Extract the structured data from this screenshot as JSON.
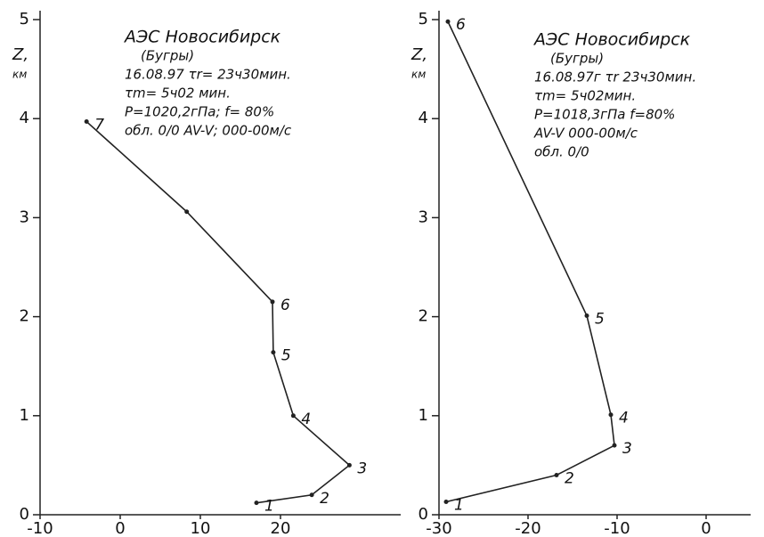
{
  "chart_data": [
    {
      "type": "line",
      "x": [
        17.0,
        23.9,
        28.6,
        21.6,
        19.1,
        19.0,
        8.3,
        -4.2
      ],
      "values": [
        0.12,
        0.2,
        0.5,
        1.0,
        1.64,
        2.15,
        3.06,
        3.97
      ],
      "point_labels": [
        "1",
        "2",
        "3",
        "4",
        "5",
        "6",
        null,
        "7"
      ],
      "color": "#222",
      "xlim": [
        -10,
        35
      ],
      "ylim": [
        0,
        5
      ],
      "xticks": [
        -10,
        0,
        10,
        20
      ],
      "yticks": [
        0,
        1,
        2,
        3,
        4,
        5
      ],
      "ylabel": [
        "Z,",
        "км"
      ],
      "annotations": [
        "АЭС Новосибирск",
        "(Бугры)",
        "16.08.97 τr= 23ч30мин.",
        "τm= 5ч02 мин.",
        "P=1020,2гПа; f= 80%",
        "обл. 0/0 AV-V; 000-00м/с"
      ]
    },
    {
      "type": "line",
      "x": [
        -29.2,
        -16.8,
        -10.3,
        -10.7,
        -13.4,
        -29.0
      ],
      "values": [
        0.13,
        0.4,
        0.7,
        1.01,
        2.01,
        4.98
      ],
      "point_labels": [
        "1",
        "2",
        "3",
        "4",
        "5",
        "6"
      ],
      "color": "#222",
      "xlim": [
        -30,
        5
      ],
      "ylim": [
        0,
        5
      ],
      "xticks": [
        -30,
        -20,
        -10,
        0
      ],
      "yticks": [
        0,
        1,
        2,
        3,
        4,
        5
      ],
      "ylabel": [
        "Z,",
        "км"
      ],
      "annotations": [
        "АЭС Новосибирск",
        "(Бугры)",
        "16.08.97г τr 23ч30мин.",
        "τm= 5ч02мин.",
        "P=1018,3гПа f=80%",
        "AV-V 000-00м/с",
        "обл. 0/0"
      ]
    }
  ]
}
